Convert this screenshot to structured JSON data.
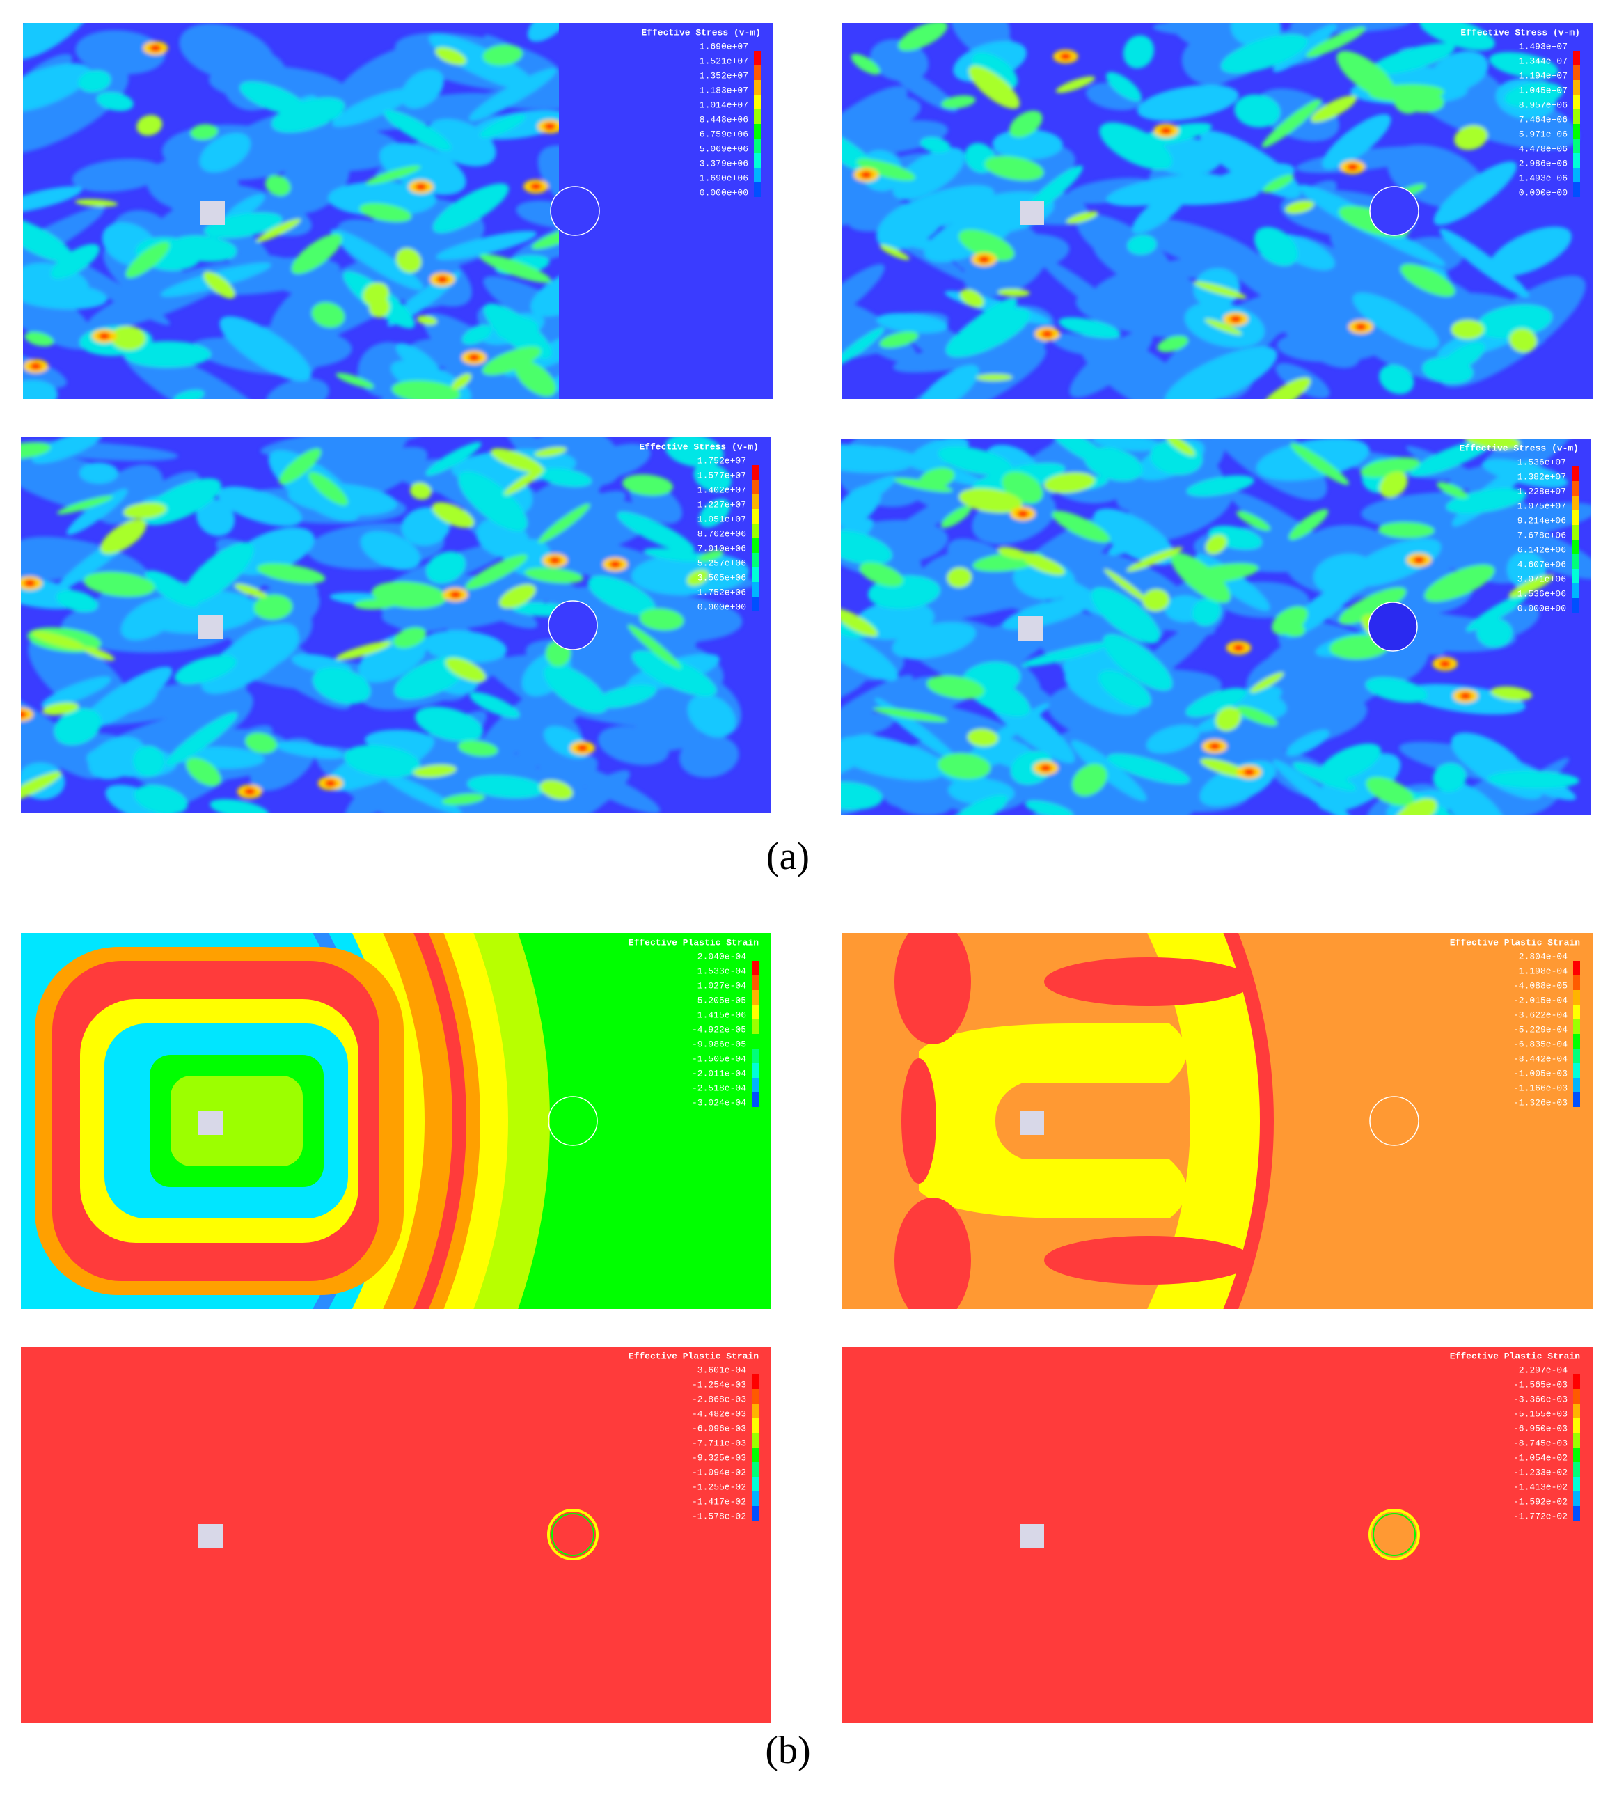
{
  "figure": {
    "panels": [
      {
        "label": "(a)",
        "plots": [
          {
            "legend_title": "Effective Stress (v-m)",
            "legend_labels": [
              "1.690e+07",
              "1.521e+07",
              "1.352e+07",
              "1.183e+07",
              "1.014e+07",
              "8.448e+06",
              "6.759e+06",
              "5.069e+06",
              "3.379e+06",
              "1.690e+06",
              "0.000e+00"
            ]
          },
          {
            "legend_title": "Effective Stress (v-m)",
            "legend_labels": [
              "1.493e+07",
              "1.344e+07",
              "1.194e+07",
              "1.045e+07",
              "8.957e+06",
              "7.464e+06",
              "5.971e+06",
              "4.478e+06",
              "2.986e+06",
              "1.493e+06",
              "0.000e+00"
            ]
          },
          {
            "legend_title": "Effective Stress (v-m)",
            "legend_labels": [
              "1.752e+07",
              "1.577e+07",
              "1.402e+07",
              "1.227e+07",
              "1.051e+07",
              "8.762e+06",
              "7.010e+06",
              "5.257e+06",
              "3.505e+06",
              "1.752e+06",
              "0.000e+00"
            ]
          },
          {
            "legend_title": "Effective Stress (v-m)",
            "legend_labels": [
              "1.536e+07",
              "1.382e+07",
              "1.228e+07",
              "1.075e+07",
              "9.214e+06",
              "7.678e+06",
              "6.142e+06",
              "4.607e+06",
              "3.071e+06",
              "1.536e+06",
              "0.000e+00"
            ]
          }
        ]
      },
      {
        "label": "(b)",
        "plots": [
          {
            "legend_title": "Effective Plastic Strain",
            "legend_labels": [
              "2.040e-04",
              "1.533e-04",
              "1.027e-04",
              "5.205e-05",
              "1.415e-06",
              "-4.922e-05",
              "-9.986e-05",
              "-1.505e-04",
              "-2.011e-04",
              "-2.518e-04",
              "-3.024e-04"
            ]
          },
          {
            "legend_title": "Effective Plastic Strain",
            "legend_labels": [
              "2.804e-04",
              "1.198e-04",
              "-4.088e-05",
              "-2.015e-04",
              "-3.622e-04",
              "-5.229e-04",
              "-6.835e-04",
              "-8.442e-04",
              "-1.005e-03",
              "-1.166e-03",
              "-1.326e-03"
            ]
          },
          {
            "legend_title": "Effective Plastic Strain",
            "legend_labels": [
              "3.601e-04",
              "-1.254e-03",
              "-2.868e-03",
              "-4.482e-03",
              "-6.096e-03",
              "-7.711e-03",
              "-9.325e-03",
              "-1.094e-02",
              "-1.255e-02",
              "-1.417e-02",
              "-1.578e-02"
            ]
          },
          {
            "legend_title": "Effective Plastic Strain",
            "legend_labels": [
              "2.297e-04",
              "-1.565e-03",
              "-3.360e-03",
              "-5.155e-03",
              "-6.950e-03",
              "-8.745e-03",
              "-1.054e-02",
              "-1.233e-02",
              "-1.413e-02",
              "-1.592e-02",
              "-1.772e-02"
            ]
          }
        ]
      }
    ]
  }
}
